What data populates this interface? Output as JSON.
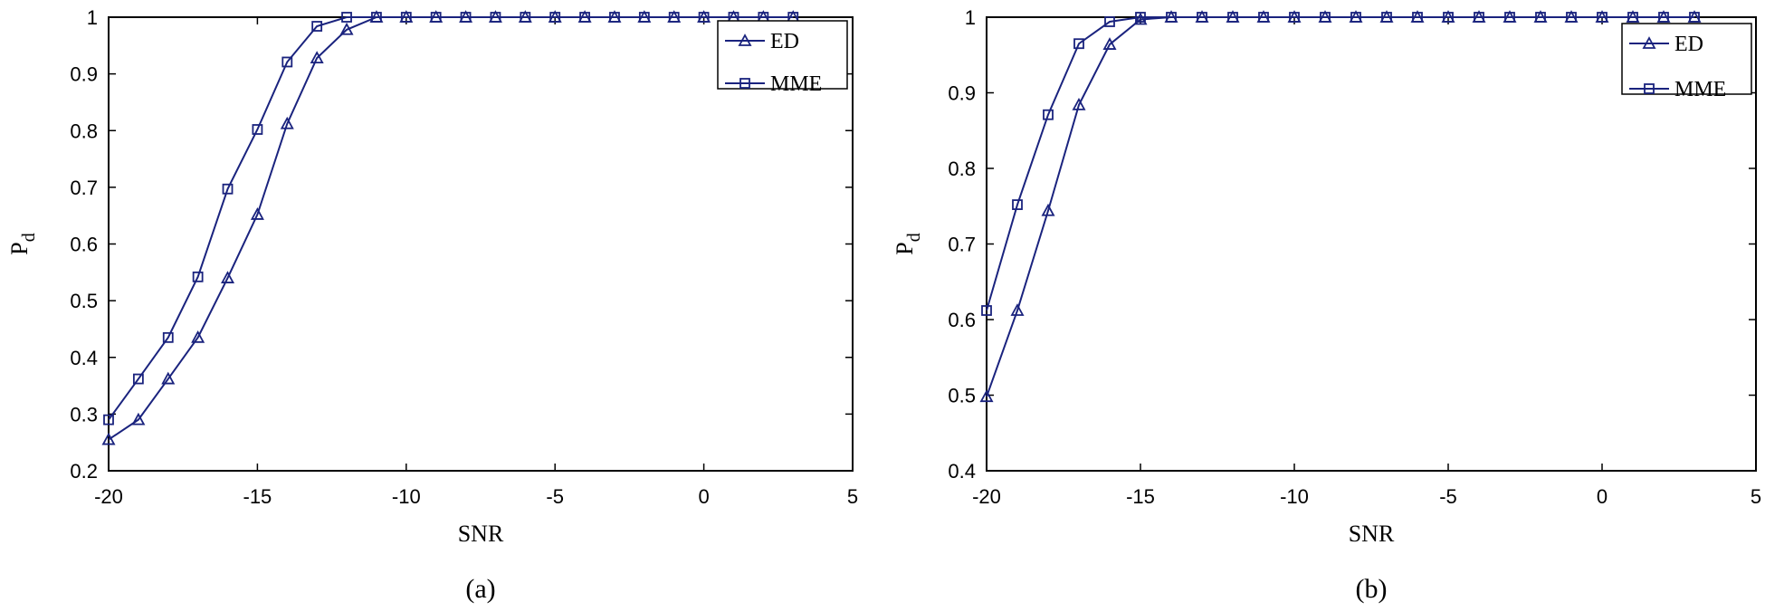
{
  "colors": {
    "series": "#1a237e",
    "axis": "#000000"
  },
  "chart_data": [
    {
      "type": "line",
      "caption": "(a)",
      "xlabel": "SNR",
      "ylabel": "P",
      "ylabel_sub": "d",
      "xlim": [
        -20,
        5
      ],
      "ylim": [
        0.2,
        1
      ],
      "xticks": [
        -20,
        -15,
        -10,
        -5,
        0,
        5
      ],
      "yticks": [
        0.2,
        0.3,
        0.4,
        0.5,
        0.6,
        0.7,
        0.8,
        0.9,
        1
      ],
      "xtick_labels": [
        "-20",
        "-15",
        "-10",
        "-5",
        "0",
        "5"
      ],
      "ytick_labels": [
        "0.2",
        "0.3",
        "0.4",
        "0.5",
        "0.6",
        "0.7",
        "0.8",
        "0.9",
        "1"
      ],
      "grid": false,
      "legend_position": "top-right",
      "x": [
        -20,
        -19,
        -18,
        -17,
        -16,
        -15,
        -14,
        -13,
        -12,
        -11,
        -10,
        -9,
        -8,
        -7,
        -6,
        -5,
        -4,
        -3,
        -2,
        -1,
        0,
        1,
        2,
        3
      ],
      "series": [
        {
          "name": "ED",
          "marker": "triangle",
          "values": [
            0.255,
            0.29,
            0.362,
            0.435,
            0.54,
            0.652,
            0.812,
            0.928,
            0.978,
            1.0,
            1.0,
            1.0,
            1.0,
            1.0,
            1.0,
            1.0,
            1.0,
            1.0,
            1.0,
            1.0,
            1.0,
            1.0,
            1.0,
            1.0
          ]
        },
        {
          "name": "MME",
          "marker": "square",
          "values": [
            0.29,
            0.362,
            0.435,
            0.542,
            0.697,
            0.802,
            0.921,
            0.984,
            1.0,
            1.0,
            1.0,
            1.0,
            1.0,
            1.0,
            1.0,
            1.0,
            1.0,
            1.0,
            1.0,
            1.0,
            1.0,
            1.0,
            1.0,
            1.0
          ]
        }
      ]
    },
    {
      "type": "line",
      "caption": "(b)",
      "xlabel": "SNR",
      "ylabel": "P",
      "ylabel_sub": "d",
      "xlim": [
        -20,
        5
      ],
      "ylim": [
        0.4,
        1
      ],
      "xticks": [
        -20,
        -15,
        -10,
        -5,
        0,
        5
      ],
      "yticks": [
        0.4,
        0.5,
        0.6,
        0.7,
        0.8,
        0.9,
        1
      ],
      "xtick_labels": [
        "-20",
        "-15",
        "-10",
        "-5",
        "0",
        "5"
      ],
      "ytick_labels": [
        "0.4",
        "0.5",
        "0.6",
        "0.7",
        "0.8",
        "0.9",
        "1"
      ],
      "grid": false,
      "legend_position": "top-right",
      "x": [
        -20,
        -19,
        -18,
        -17,
        -16,
        -15,
        -14,
        -13,
        -12,
        -11,
        -10,
        -9,
        -8,
        -7,
        -6,
        -5,
        -4,
        -3,
        -2,
        -1,
        0,
        1,
        2,
        3
      ],
      "series": [
        {
          "name": "ED",
          "marker": "triangle",
          "values": [
            0.498,
            0.612,
            0.744,
            0.884,
            0.964,
            0.997,
            1.0,
            1.0,
            1.0,
            1.0,
            1.0,
            1.0,
            1.0,
            1.0,
            1.0,
            1.0,
            1.0,
            1.0,
            1.0,
            1.0,
            1.0,
            1.0,
            1.0,
            1.0
          ]
        },
        {
          "name": "MME",
          "marker": "square",
          "values": [
            0.612,
            0.752,
            0.871,
            0.965,
            0.994,
            1.0,
            1.0,
            1.0,
            1.0,
            1.0,
            1.0,
            1.0,
            1.0,
            1.0,
            1.0,
            1.0,
            1.0,
            1.0,
            1.0,
            1.0,
            1.0,
            1.0,
            1.0,
            1.0
          ]
        }
      ]
    }
  ]
}
